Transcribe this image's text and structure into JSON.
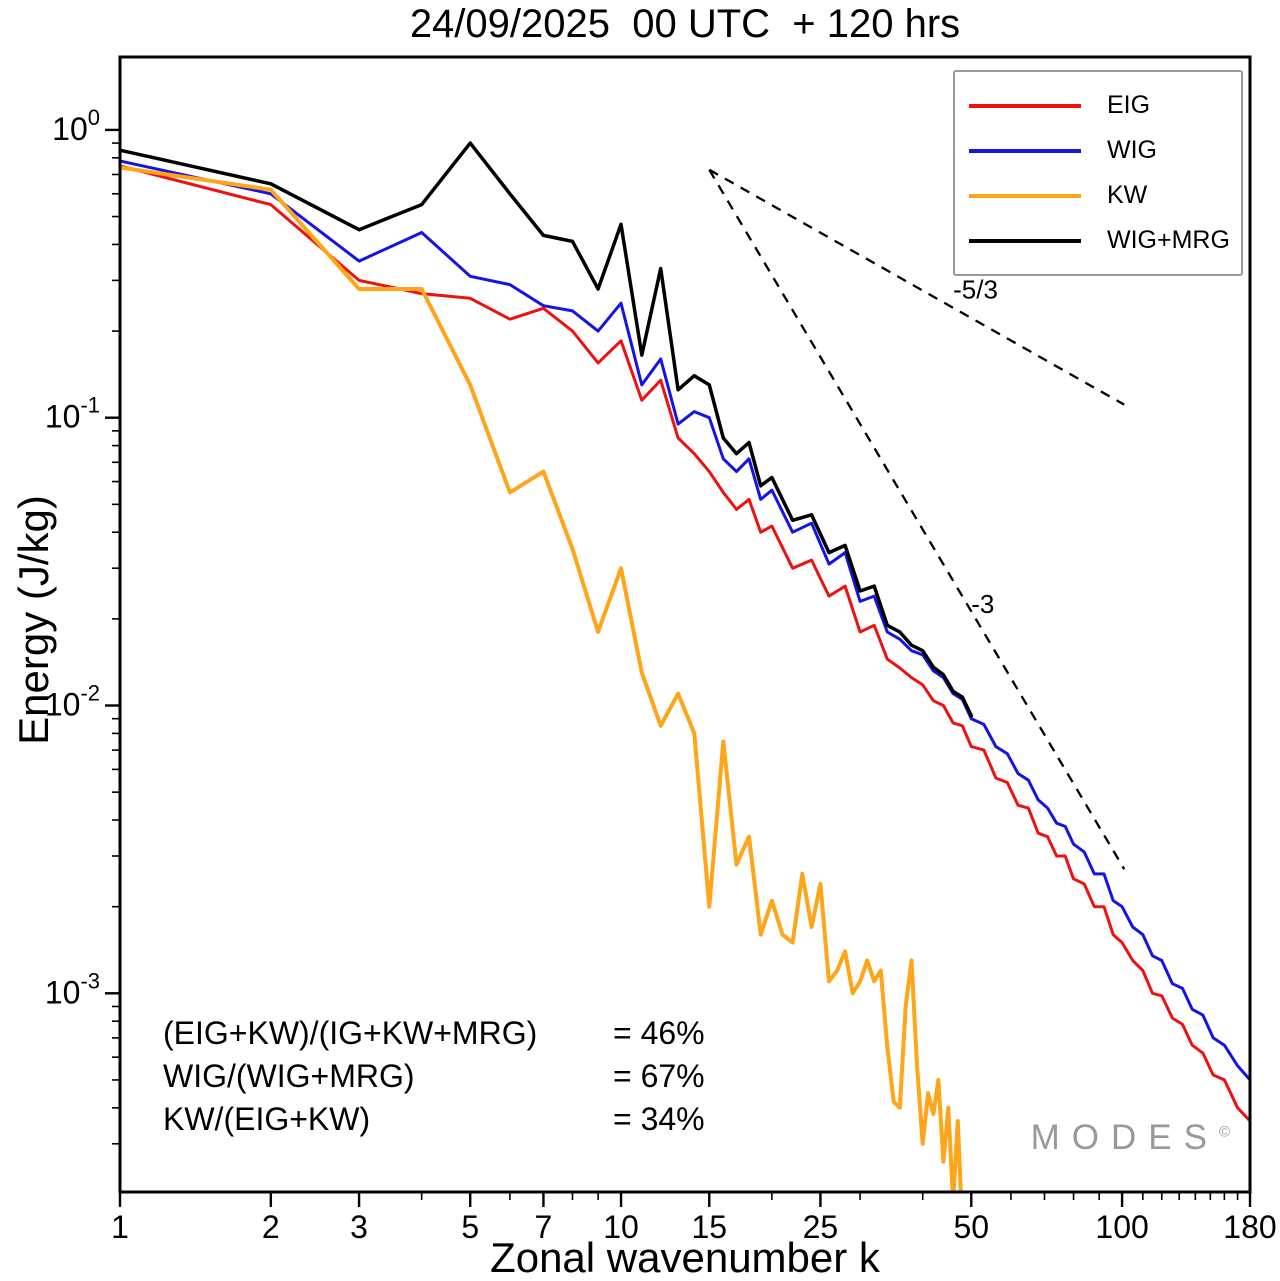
{
  "title": "24/09/2025  00 UTC  + 120 hrs",
  "axes": {
    "x_label": "Zonal wavenumber k",
    "y_label": "Energy (J/kg)"
  },
  "legend": {
    "position": "top-right",
    "items": [
      {
        "label": "EIG",
        "color": "#ee1111"
      },
      {
        "label": "WIG",
        "color": "#1414e6"
      },
      {
        "label": "KW",
        "color": "#ffa519"
      },
      {
        "label": "WIG+MRG",
        "color": "#000000"
      }
    ]
  },
  "stats": {
    "rows": [
      {
        "formula": "(EIG+KW)/(IG+KW+MRG)",
        "value": "= 46%"
      },
      {
        "formula": "WIG/(WIG+MRG)",
        "value": "= 67%"
      },
      {
        "formula": "KW/(EIG+KW)",
        "value": "= 34%"
      }
    ]
  },
  "watermark": {
    "text": "MODES",
    "mark": "©"
  },
  "chart_data": {
    "type": "line",
    "title": "24/09/2025  00 UTC  + 120 hrs",
    "xlabel": "Zonal wavenumber k",
    "ylabel": "Energy (J/kg)",
    "xscale": "log",
    "yscale": "log",
    "grid": false,
    "legend_position": "top-right",
    "xlim": [
      1,
      180
    ],
    "ylim": [
      0.000204,
      1.792
    ],
    "x_ticks": [
      {
        "v": 1,
        "label": "1"
      },
      {
        "v": 2,
        "label": "2"
      },
      {
        "v": 3,
        "label": "3"
      },
      {
        "v": 5,
        "label": "5"
      },
      {
        "v": 7,
        "label": "7"
      },
      {
        "v": 10,
        "label": "10"
      },
      {
        "v": 15,
        "label": "15"
      },
      {
        "v": 25,
        "label": "25"
      },
      {
        "v": 50,
        "label": "50"
      },
      {
        "v": 100,
        "label": "100"
      },
      {
        "v": 180,
        "label": "180"
      }
    ],
    "x_minor": [
      4,
      6,
      8,
      9,
      20,
      30,
      40,
      60,
      70,
      80,
      90,
      110,
      120,
      130,
      140,
      150,
      160,
      170
    ],
    "y_ticks": [
      {
        "v": 1,
        "base": "10",
        "exp": "0"
      },
      {
        "v": 0.1,
        "base": "10",
        "exp": "-1"
      },
      {
        "v": 0.01,
        "base": "10",
        "exp": "-2"
      },
      {
        "v": 0.001,
        "base": "10",
        "exp": "-3"
      }
    ],
    "y_minor": [
      0.0003,
      0.0004,
      0.0005,
      0.0006,
      0.0007,
      0.0008,
      0.0009,
      0.002,
      0.003,
      0.004,
      0.005,
      0.006,
      0.007,
      0.008,
      0.009,
      0.02,
      0.03,
      0.04,
      0.05,
      0.06,
      0.07,
      0.08,
      0.09,
      0.2,
      0.3,
      0.4,
      0.5,
      0.6,
      0.7,
      0.8,
      0.9
    ],
    "ref_lines": [
      {
        "label": "-5/3",
        "from": [
          15,
          0.727
        ],
        "to": [
          101,
          0.111
        ],
        "label_at": [
          46,
          0.26
        ]
      },
      {
        "label": "-3",
        "from": [
          15,
          0.727
        ],
        "to": [
          101,
          0.0027
        ],
        "label_at": [
          50,
          0.021
        ]
      }
    ],
    "series": [
      {
        "name": "EIG",
        "color": "#ee1111",
        "width": 3,
        "points": [
          [
            1,
            0.75
          ],
          [
            2,
            0.55
          ],
          [
            3,
            0.3
          ],
          [
            4,
            0.27
          ],
          [
            5,
            0.26
          ],
          [
            6,
            0.22
          ],
          [
            7,
            0.24
          ],
          [
            8,
            0.2
          ],
          [
            9,
            0.155
          ],
          [
            10,
            0.185
          ],
          [
            11,
            0.115
          ],
          [
            12,
            0.135
          ],
          [
            13,
            0.085
          ],
          [
            14,
            0.075
          ],
          [
            15,
            0.065
          ],
          [
            16,
            0.055
          ],
          [
            17,
            0.048
          ],
          [
            18,
            0.052
          ],
          [
            19,
            0.04
          ],
          [
            20,
            0.042
          ],
          [
            22,
            0.03
          ],
          [
            24,
            0.032
          ],
          [
            26,
            0.024
          ],
          [
            28,
            0.026
          ],
          [
            30,
            0.018
          ],
          [
            32,
            0.019
          ],
          [
            34,
            0.0145
          ],
          [
            36,
            0.0135
          ],
          [
            38,
            0.0125
          ],
          [
            40,
            0.0118
          ],
          [
            42,
            0.0104
          ],
          [
            44,
            0.01
          ],
          [
            46,
            0.0087
          ],
          [
            48,
            0.0085
          ],
          [
            50,
            0.0072
          ],
          [
            53,
            0.007
          ],
          [
            56,
            0.0056
          ],
          [
            59,
            0.0054
          ],
          [
            62,
            0.0045
          ],
          [
            65,
            0.0044
          ],
          [
            68,
            0.0036
          ],
          [
            71,
            0.0035
          ],
          [
            74,
            0.003
          ],
          [
            77,
            0.003
          ],
          [
            80,
            0.0025
          ],
          [
            84,
            0.0024
          ],
          [
            88,
            0.002
          ],
          [
            92,
            0.002
          ],
          [
            96,
            0.0016
          ],
          [
            100,
            0.0015
          ],
          [
            105,
            0.0013
          ],
          [
            110,
            0.0012
          ],
          [
            115,
            0.001
          ],
          [
            120,
            0.00098
          ],
          [
            126,
            0.00082
          ],
          [
            132,
            0.00078
          ],
          [
            138,
            0.00066
          ],
          [
            145,
            0.00062
          ],
          [
            152,
            0.00052
          ],
          [
            160,
            0.0005
          ],
          [
            170,
            0.0004
          ],
          [
            180,
            0.00036
          ]
        ]
      },
      {
        "name": "WIG",
        "color": "#1414e6",
        "width": 3,
        "points": [
          [
            1,
            0.78
          ],
          [
            2,
            0.6
          ],
          [
            3,
            0.35
          ],
          [
            4,
            0.44
          ],
          [
            5,
            0.31
          ],
          [
            6,
            0.29
          ],
          [
            7,
            0.245
          ],
          [
            8,
            0.235
          ],
          [
            9,
            0.2
          ],
          [
            10,
            0.25
          ],
          [
            11,
            0.13
          ],
          [
            12,
            0.16
          ],
          [
            13,
            0.095
          ],
          [
            14,
            0.105
          ],
          [
            15,
            0.1
          ],
          [
            16,
            0.072
          ],
          [
            17,
            0.065
          ],
          [
            18,
            0.072
          ],
          [
            19,
            0.052
          ],
          [
            20,
            0.056
          ],
          [
            22,
            0.04
          ],
          [
            24,
            0.043
          ],
          [
            26,
            0.031
          ],
          [
            28,
            0.034
          ],
          [
            30,
            0.023
          ],
          [
            32,
            0.024
          ],
          [
            34,
            0.018
          ],
          [
            36,
            0.017
          ],
          [
            38,
            0.0155
          ],
          [
            40,
            0.015
          ],
          [
            42,
            0.0132
          ],
          [
            44,
            0.0125
          ],
          [
            46,
            0.011
          ],
          [
            48,
            0.0105
          ],
          [
            50,
            0.009
          ],
          [
            53,
            0.0086
          ],
          [
            56,
            0.0072
          ],
          [
            59,
            0.0068
          ],
          [
            62,
            0.0058
          ],
          [
            65,
            0.0055
          ],
          [
            68,
            0.0047
          ],
          [
            71,
            0.0044
          ],
          [
            74,
            0.0039
          ],
          [
            77,
            0.0038
          ],
          [
            80,
            0.0033
          ],
          [
            84,
            0.0031
          ],
          [
            88,
            0.0026
          ],
          [
            92,
            0.0026
          ],
          [
            96,
            0.0021
          ],
          [
            100,
            0.002
          ],
          [
            105,
            0.0017
          ],
          [
            110,
            0.0016
          ],
          [
            115,
            0.00135
          ],
          [
            120,
            0.0013
          ],
          [
            126,
            0.00108
          ],
          [
            132,
            0.00104
          ],
          [
            138,
            0.00088
          ],
          [
            145,
            0.00084
          ],
          [
            152,
            0.0007
          ],
          [
            160,
            0.00066
          ],
          [
            170,
            0.00056
          ],
          [
            180,
            0.0005
          ]
        ]
      },
      {
        "name": "KW",
        "color": "#ffa519",
        "width": 4,
        "points": [
          [
            1,
            0.74
          ],
          [
            2,
            0.62
          ],
          [
            3,
            0.28
          ],
          [
            4,
            0.28
          ],
          [
            5,
            0.13
          ],
          [
            6,
            0.055
          ],
          [
            7,
            0.065
          ],
          [
            8,
            0.035
          ],
          [
            9,
            0.018
          ],
          [
            10,
            0.03
          ],
          [
            11,
            0.013
          ],
          [
            12,
            0.0085
          ],
          [
            13,
            0.011
          ],
          [
            14,
            0.008
          ],
          [
            15,
            0.002
          ],
          [
            16,
            0.0075
          ],
          [
            17,
            0.0028
          ],
          [
            18,
            0.0035
          ],
          [
            19,
            0.0016
          ],
          [
            20,
            0.0021
          ],
          [
            21,
            0.0016
          ],
          [
            22,
            0.0015
          ],
          [
            23,
            0.0026
          ],
          [
            24,
            0.0017
          ],
          [
            25,
            0.0024
          ],
          [
            26,
            0.0011
          ],
          [
            27,
            0.0012
          ],
          [
            28,
            0.0014
          ],
          [
            29,
            0.001
          ],
          [
            30,
            0.0011
          ],
          [
            31,
            0.0013
          ],
          [
            32,
            0.0011
          ],
          [
            33,
            0.0012
          ],
          [
            34,
            0.00065
          ],
          [
            35,
            0.00042
          ],
          [
            36,
            0.0004
          ],
          [
            37,
            0.0009
          ],
          [
            38,
            0.0013
          ],
          [
            39,
            0.00055
          ],
          [
            40,
            0.0003
          ],
          [
            41,
            0.00045
          ],
          [
            42,
            0.00038
          ],
          [
            43,
            0.0005
          ],
          [
            44,
            0.00026
          ],
          [
            45,
            0.0004
          ],
          [
            46,
            0.00019
          ],
          [
            47,
            0.00036
          ],
          [
            48,
            0.00015
          ]
        ]
      },
      {
        "name": "WIG+MRG",
        "color": "#000000",
        "width": 3.5,
        "points": [
          [
            1,
            0.85
          ],
          [
            2,
            0.65
          ],
          [
            3,
            0.45
          ],
          [
            4,
            0.55
          ],
          [
            5,
            0.9
          ],
          [
            6,
            0.6
          ],
          [
            7,
            0.43
          ],
          [
            8,
            0.41
          ],
          [
            9,
            0.28
          ],
          [
            10,
            0.47
          ],
          [
            11,
            0.165
          ],
          [
            12,
            0.33
          ],
          [
            13,
            0.125
          ],
          [
            14,
            0.14
          ],
          [
            15,
            0.13
          ],
          [
            16,
            0.085
          ],
          [
            17,
            0.075
          ],
          [
            18,
            0.082
          ],
          [
            19,
            0.058
          ],
          [
            20,
            0.062
          ],
          [
            22,
            0.044
          ],
          [
            24,
            0.046
          ],
          [
            26,
            0.034
          ],
          [
            28,
            0.036
          ],
          [
            30,
            0.025
          ],
          [
            32,
            0.026
          ],
          [
            34,
            0.019
          ],
          [
            36,
            0.018
          ],
          [
            38,
            0.0162
          ],
          [
            40,
            0.0155
          ],
          [
            42,
            0.0136
          ],
          [
            44,
            0.0128
          ],
          [
            46,
            0.0112
          ],
          [
            48,
            0.0107
          ],
          [
            50,
            0.0092
          ]
        ]
      }
    ]
  }
}
